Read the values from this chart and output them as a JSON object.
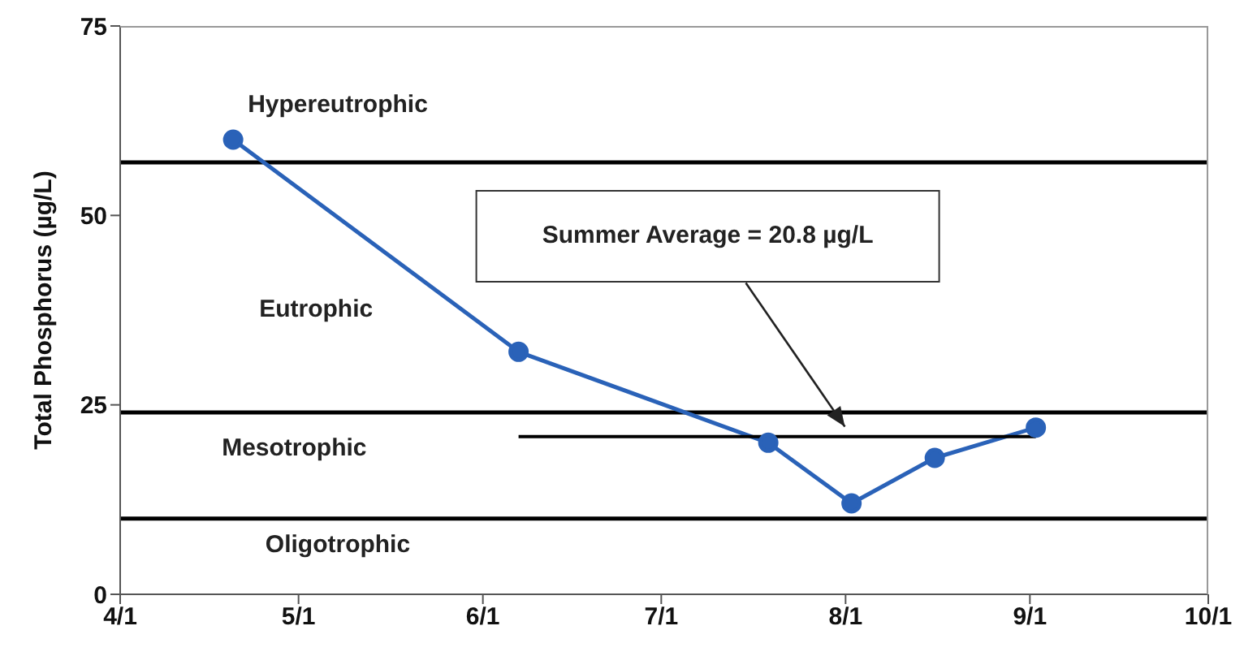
{
  "chart_data": {
    "type": "line",
    "ylabel": "Total Phosphorus (µg/L)",
    "xlim": [
      "--04-01",
      "--10-01"
    ],
    "xticks": [
      {
        "value": "--04-01",
        "label": "4/1"
      },
      {
        "value": "--05-01",
        "label": "5/1"
      },
      {
        "value": "--06-01",
        "label": "6/1"
      },
      {
        "value": "--07-01",
        "label": "7/1"
      },
      {
        "value": "--08-01",
        "label": "8/1"
      },
      {
        "value": "--09-01",
        "label": "9/1"
      },
      {
        "value": "--10-01",
        "label": "10/1"
      }
    ],
    "ylim": [
      0,
      75
    ],
    "yticks": [
      0,
      25,
      50,
      75
    ],
    "marker": "circle",
    "line_style": "solid",
    "series": [
      {
        "color": "#2a62b8",
        "x": [
          "--04-20",
          "--06-07",
          "--07-19",
          "--08-02",
          "--08-16",
          "--09-02"
        ],
        "values": [
          60,
          32,
          20,
          12,
          18,
          22
        ]
      },
      {
        "type": "line",
        "color": "#000000",
        "marker": "none",
        "x": [
          "--06-07",
          "--09-02"
        ],
        "values": [
          20.8,
          20.8
        ]
      }
    ],
    "ref_lines": [
      {
        "axis": "y",
        "value": 57,
        "color": "#000000"
      },
      {
        "axis": "y",
        "value": 24,
        "color": "#000000"
      },
      {
        "axis": "y",
        "value": 10,
        "color": "#000000"
      }
    ],
    "annotations": [
      "Hypereutrophic",
      "Eutrophic",
      "Mesotrophic",
      "Oligotrophic",
      "Summer Average = 20.8 µg/L"
    ]
  }
}
